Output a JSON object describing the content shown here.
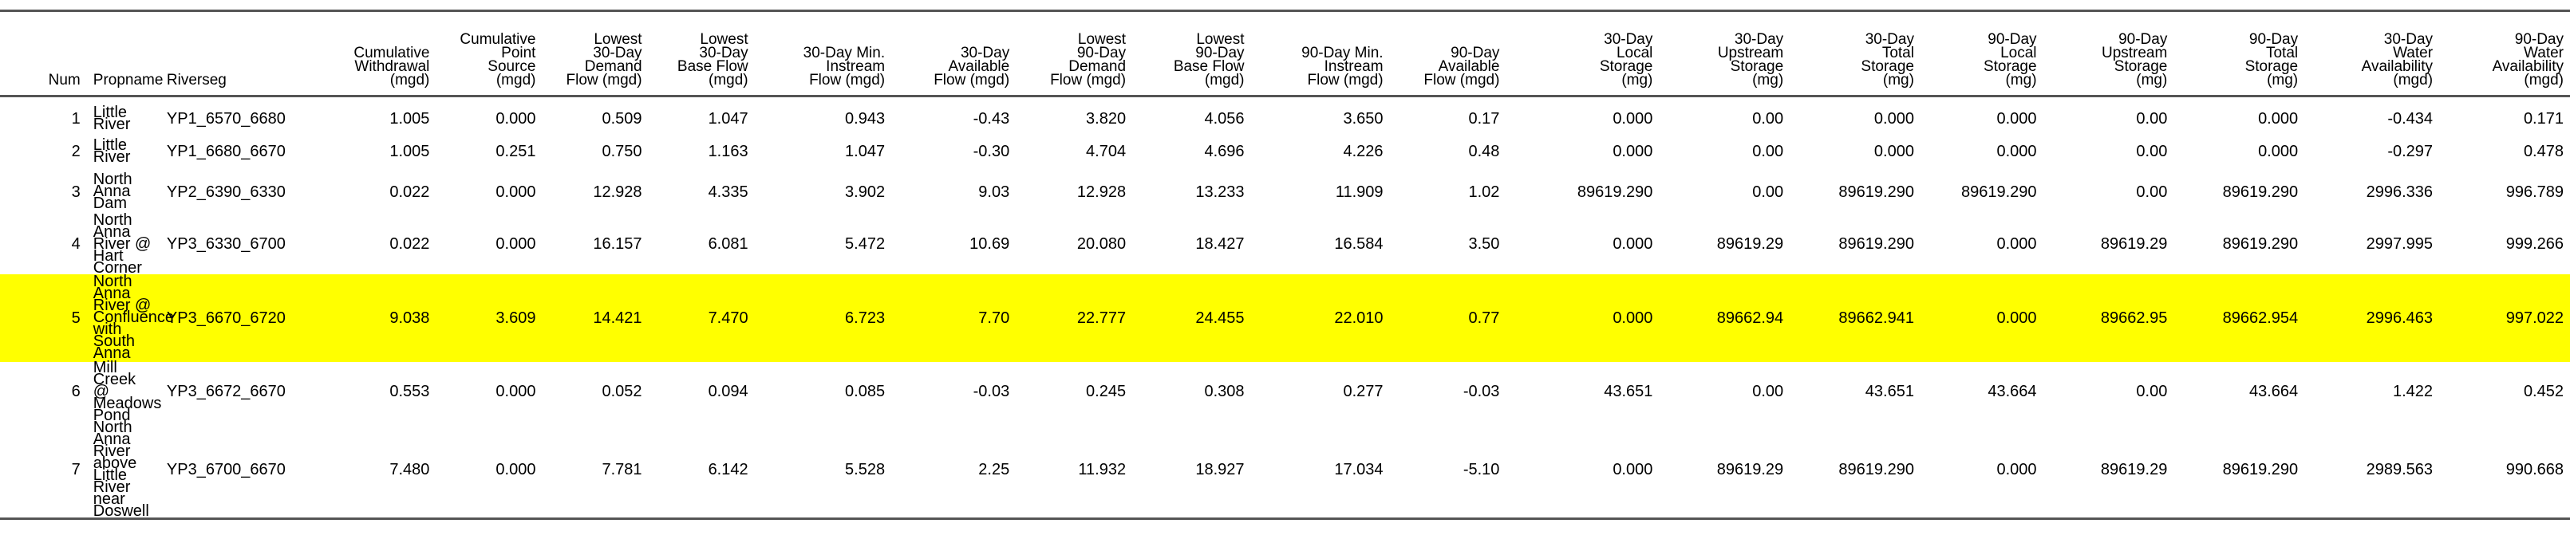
{
  "columns": [
    {
      "label": "Num",
      "align": "r"
    },
    {
      "label": "Propname",
      "align": "l"
    },
    {
      "label": "Riverseg",
      "align": "l"
    },
    {
      "label": "Cumulative\nWithdrawal\n(mgd)",
      "align": "r"
    },
    {
      "label": "Cumulative\nPoint\nSource\n(mgd)",
      "align": "r"
    },
    {
      "label": "Lowest\n30-Day\nDemand\nFlow (mgd)",
      "align": "r"
    },
    {
      "label": "Lowest\n30-Day\nBase Flow\n(mgd)",
      "align": "r"
    },
    {
      "label": "30-Day Min.\nInstream\nFlow (mgd)",
      "align": "r"
    },
    {
      "label": "30-Day\nAvailable\nFlow (mgd)",
      "align": "r"
    },
    {
      "label": "Lowest\n90-Day\nDemand\nFlow (mgd)",
      "align": "r"
    },
    {
      "label": "Lowest\n90-Day\nBase Flow\n(mgd)",
      "align": "r"
    },
    {
      "label": "90-Day Min.\nInstream\nFlow (mgd)",
      "align": "r"
    },
    {
      "label": "90-Day\nAvailable\nFlow (mgd)",
      "align": "r"
    },
    {
      "label": "30-Day\nLocal\nStorage\n(mg)",
      "align": "r"
    },
    {
      "label": "30-Day\nUpstream\nStorage\n(mg)",
      "align": "r"
    },
    {
      "label": "30-Day\nTotal\nStorage\n(mg)",
      "align": "r"
    },
    {
      "label": "90-Day\nLocal\nStorage\n(mg)",
      "align": "r"
    },
    {
      "label": "90-Day\nUpstream\nStorage\n(mg)",
      "align": "r"
    },
    {
      "label": "90-Day\nTotal\nStorage\n(mg)",
      "align": "r"
    },
    {
      "label": "30-Day\nWater\nAvailability\n(mgd)",
      "align": "r"
    },
    {
      "label": "90-Day\nWater\nAvailability\n(mgd)",
      "align": "r"
    }
  ],
  "rows": [
    {
      "highlight": false,
      "propname_lines": [
        "Little River"
      ],
      "cells": [
        "1",
        "Little River",
        "YP1_6570_6680",
        "1.005",
        "0.000",
        "0.509",
        "1.047",
        "0.943",
        "-0.43",
        "3.820",
        "4.056",
        "3.650",
        "0.17",
        "0.000",
        "0.00",
        "0.000",
        "0.000",
        "0.00",
        "0.000",
        "-0.434",
        "0.171"
      ]
    },
    {
      "highlight": false,
      "propname_lines": [
        "Little River"
      ],
      "cells": [
        "2",
        "Little River",
        "YP1_6680_6670",
        "1.005",
        "0.251",
        "0.750",
        "1.163",
        "1.047",
        "-0.30",
        "4.704",
        "4.696",
        "4.226",
        "0.48",
        "0.000",
        "0.00",
        "0.000",
        "0.000",
        "0.00",
        "0.000",
        "-0.297",
        "0.478"
      ]
    },
    {
      "highlight": false,
      "propname_lines": [
        "North Anna",
        "Dam"
      ],
      "cells": [
        "3",
        "North Anna Dam",
        "YP2_6390_6330",
        "0.022",
        "0.000",
        "12.928",
        "4.335",
        "3.902",
        "9.03",
        "12.928",
        "13.233",
        "11.909",
        "1.02",
        "89619.290",
        "0.00",
        "89619.290",
        "89619.290",
        "0.00",
        "89619.290",
        "2996.336",
        "996.789"
      ]
    },
    {
      "highlight": false,
      "propname_lines": [
        "North Anna",
        "River @",
        "Hart Corner"
      ],
      "cells": [
        "4",
        "North Anna River @ Hart Corner",
        "YP3_6330_6700",
        "0.022",
        "0.000",
        "16.157",
        "6.081",
        "5.472",
        "10.69",
        "20.080",
        "18.427",
        "16.584",
        "3.50",
        "0.000",
        "89619.29",
        "89619.290",
        "0.000",
        "89619.29",
        "89619.290",
        "2997.995",
        "999.266"
      ]
    },
    {
      "highlight": true,
      "propname_lines": [
        "North Anna",
        "River @",
        "Confluence",
        "with South",
        "Anna"
      ],
      "cells": [
        "5",
        "North Anna River @ Confluence with South Anna",
        "YP3_6670_6720",
        "9.038",
        "3.609",
        "14.421",
        "7.470",
        "6.723",
        "7.70",
        "22.777",
        "24.455",
        "22.010",
        "0.77",
        "0.000",
        "89662.94",
        "89662.941",
        "0.000",
        "89662.95",
        "89662.954",
        "2996.463",
        "997.022"
      ]
    },
    {
      "highlight": false,
      "propname_lines": [
        "Mill Creek",
        "@",
        "Meadows",
        "Pond"
      ],
      "cells": [
        "6",
        "Mill Creek @ Meadows Pond",
        "YP3_6672_6670",
        "0.553",
        "0.000",
        "0.052",
        "0.094",
        "0.085",
        "-0.03",
        "0.245",
        "0.308",
        "0.277",
        "-0.03",
        "43.651",
        "0.00",
        "43.651",
        "43.664",
        "0.00",
        "43.664",
        "1.422",
        "0.452"
      ]
    },
    {
      "highlight": false,
      "propname_lines": [
        "North Anna",
        "River above",
        "Little River",
        "near",
        "Doswell"
      ],
      "cells": [
        "7",
        "North Anna River above Little River near Doswell",
        "YP3_6700_6670",
        "7.480",
        "0.000",
        "7.781",
        "6.142",
        "5.528",
        "2.25",
        "11.932",
        "18.927",
        "17.034",
        "-5.10",
        "0.000",
        "89619.29",
        "89619.290",
        "0.000",
        "89619.29",
        "89619.290",
        "2989.563",
        "990.668"
      ]
    }
  ]
}
